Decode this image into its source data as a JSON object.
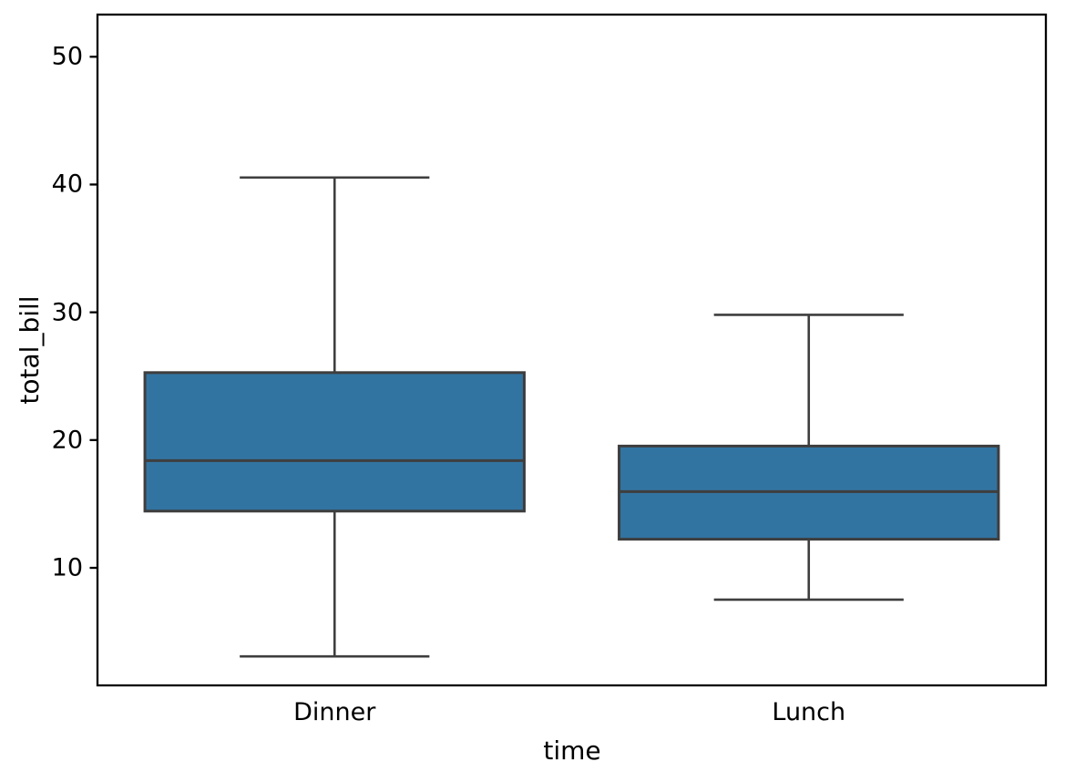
{
  "figure": {
    "background": "#ffffff"
  },
  "chart_data": {
    "type": "box",
    "title": "",
    "xlabel": "time",
    "ylabel": "total_bill",
    "categories": [
      "Dinner",
      "Lunch"
    ],
    "series": [
      {
        "category": "Dinner",
        "whisker_low": 3.07,
        "q1": 14.44,
        "median": 18.39,
        "q3": 25.28,
        "whisker_high": 40.55,
        "outliers": []
      },
      {
        "category": "Lunch",
        "whisker_low": 7.51,
        "q1": 12.24,
        "median": 15.97,
        "q3": 19.53,
        "whisker_high": 29.8,
        "outliers": []
      }
    ],
    "yticks": [
      10,
      20,
      30,
      40,
      50
    ],
    "ylim": [
      0.8,
      53.3
    ],
    "xlim": [
      -0.5,
      1.5
    ],
    "box_width": 0.8,
    "cap_width": 0.4,
    "grid": false,
    "legend": null,
    "colors": {
      "box_fill": "#3274a1",
      "box_edge": "#3e3e3e",
      "whisker": "#3e3e3e",
      "median": "#3e3e3e",
      "spine": "#000000",
      "text": "#000000"
    }
  }
}
